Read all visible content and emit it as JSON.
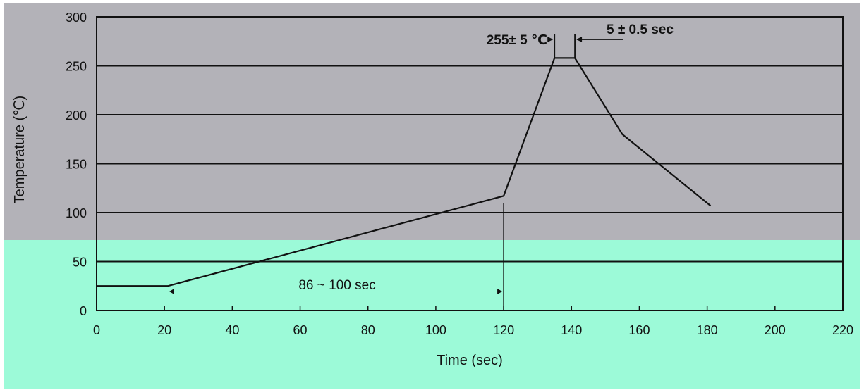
{
  "chart_data": {
    "type": "line",
    "title": "",
    "xlabel": "Time  (sec)",
    "ylabel": "Temperature (℃)",
    "xlim": [
      0,
      220
    ],
    "ylim": [
      0,
      300
    ],
    "x_ticks": [
      0,
      20,
      40,
      60,
      80,
      100,
      120,
      140,
      160,
      180,
      200,
      220
    ],
    "y_ticks": [
      0,
      50,
      100,
      150,
      200,
      250,
      300
    ],
    "grid": "horizontal",
    "series": [
      {
        "x": [
          0,
          21,
          120,
          135,
          141,
          155,
          181
        ],
        "y": [
          25,
          25,
          117,
          258,
          258,
          180,
          107
        ]
      }
    ],
    "annotations": {
      "preheat_duration": "86 ~ 100 sec",
      "peak_temperature": "255± 5 ℃",
      "peak_duration": "5 ± 0.5 sec"
    },
    "colors": {
      "upper_band": "#b3b2b8",
      "lower_band": "#9cfad8",
      "line": "#111111"
    }
  }
}
